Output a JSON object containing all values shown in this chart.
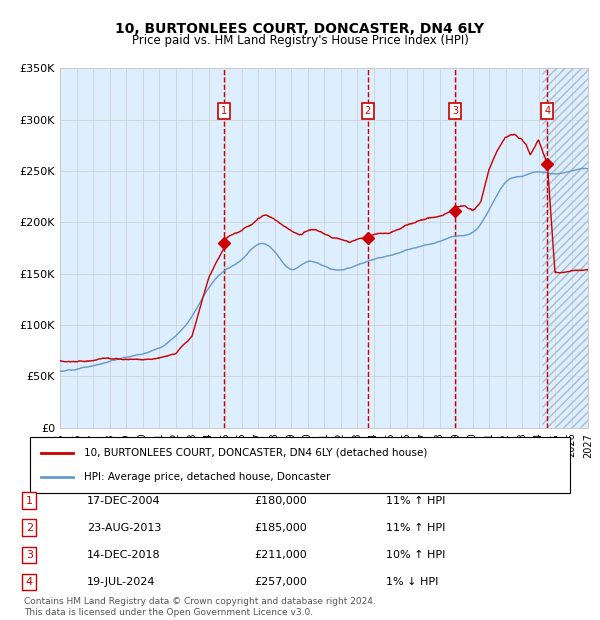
{
  "title": "10, BURTONLEES COURT, DONCASTER, DN4 6LY",
  "subtitle": "Price paid vs. HM Land Registry's House Price Index (HPI)",
  "x_start_year": 1995,
  "x_end_year": 2027,
  "y_min": 0,
  "y_max": 350000,
  "y_ticks": [
    0,
    50000,
    100000,
    150000,
    200000,
    250000,
    300000,
    350000
  ],
  "y_tick_labels": [
    "£0",
    "£50K",
    "£100K",
    "£150K",
    "£200K",
    "£250K",
    "£300K",
    "£350K"
  ],
  "red_line_color": "#cc0000",
  "blue_line_color": "#6699cc",
  "blue_fill_color": "#ddeeff",
  "grid_color": "#cccccc",
  "background_color": "#ddeeff",
  "hatch_color": "#aabbcc",
  "sale_markers": [
    {
      "num": 1,
      "year": 2004.96,
      "price": 180000,
      "date": "17-DEC-2004",
      "hpi_pct": "11% ↑ HPI"
    },
    {
      "num": 2,
      "year": 2013.64,
      "price": 185000,
      "date": "23-AUG-2013",
      "hpi_pct": "11% ↑ HPI"
    },
    {
      "num": 3,
      "year": 2018.95,
      "price": 211000,
      "date": "14-DEC-2018",
      "hpi_pct": "10% ↑ HPI"
    },
    {
      "num": 4,
      "year": 2024.54,
      "price": 257000,
      "date": "19-JUL-2024",
      "hpi_pct": "1% ↓ HPI"
    }
  ],
  "legend_red_label": "10, BURTONLEES COURT, DONCASTER, DN4 6LY (detached house)",
  "legend_blue_label": "HPI: Average price, detached house, Doncaster",
  "footer": "Contains HM Land Registry data © Crown copyright and database right 2024.\nThis data is licensed under the Open Government Licence v3.0.",
  "table_rows": [
    {
      "num": 1,
      "date": "17-DEC-2004",
      "price": "£180,000",
      "hpi": "11% ↑ HPI"
    },
    {
      "num": 2,
      "date": "23-AUG-2013",
      "price": "£185,000",
      "hpi": "11% ↑ HPI"
    },
    {
      "num": 3,
      "date": "14-DEC-2018",
      "price": "£211,000",
      "hpi": "10% ↑ HPI"
    },
    {
      "num": 4,
      "date": "19-JUL-2024",
      "price": "£257,000",
      "hpi": "1% ↓ HPI"
    }
  ]
}
